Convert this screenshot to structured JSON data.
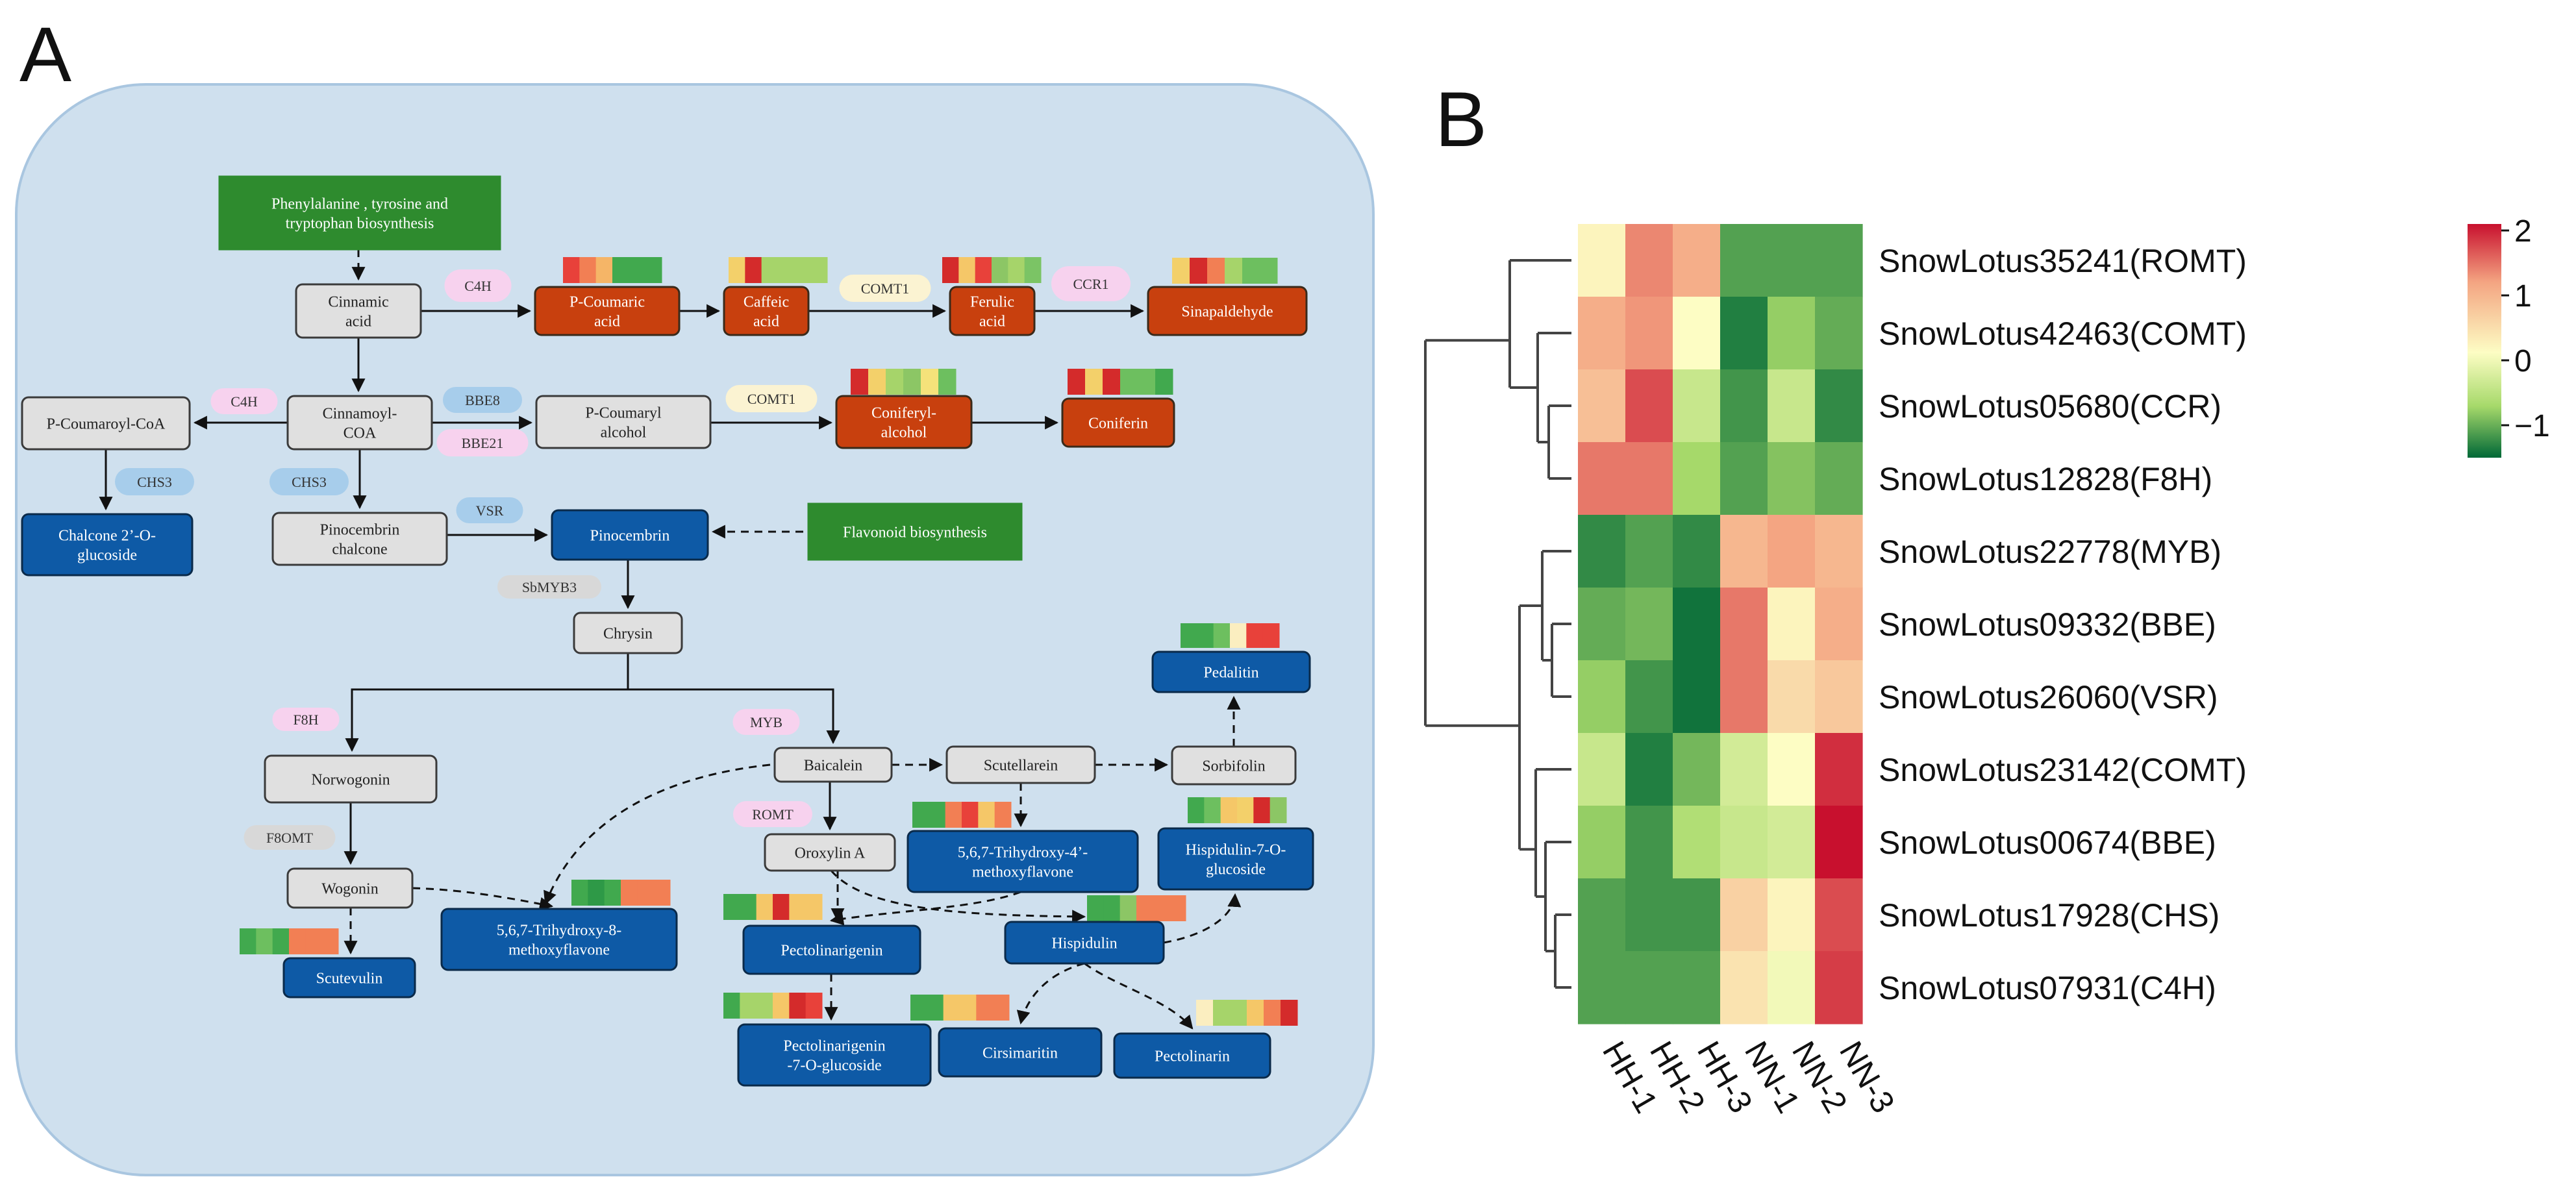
{
  "panel_a": {
    "label": "A",
    "colors": {
      "background": "#cfe0ee",
      "background_border": "#a9c6e0",
      "green_box": "#2e8b2e",
      "gray_box": "#e0e0e0",
      "orange_box": "#c8400e",
      "blue_box": "#0e5aa6",
      "pink_enzyme": "#f7d2ee",
      "blue_enzyme": "#a7cdeb",
      "yellow_enzyme": "#fbf3d2",
      "gray_enzyme": "#d8d8d8"
    },
    "nodes": [
      {
        "id": "n_phe",
        "type": "green",
        "lines": [
          "Phenylalanine , tyrosine and",
          "tryptophan biosynthesis"
        ]
      },
      {
        "id": "n_cinnamic",
        "type": "gray",
        "lines": [
          "Cinnamic",
          "acid"
        ]
      },
      {
        "id": "n_pcoumaric",
        "type": "orange",
        "lines": [
          "P-Coumaric",
          "acid"
        ]
      },
      {
        "id": "n_caffeic",
        "type": "orange",
        "lines": [
          "Caffeic",
          "acid"
        ]
      },
      {
        "id": "n_ferulic",
        "type": "orange",
        "lines": [
          "Ferulic",
          "acid"
        ]
      },
      {
        "id": "n_sinap",
        "type": "orange",
        "lines": [
          "Sinapaldehyde"
        ]
      },
      {
        "id": "n_pcoumaroylcoa",
        "type": "gray",
        "lines": [
          "P-Coumaroyl-CoA"
        ]
      },
      {
        "id": "n_cinnamoylcoa",
        "type": "gray",
        "lines": [
          "Cinnamoyl-",
          "COA"
        ]
      },
      {
        "id": "n_pcoumarylalc",
        "type": "gray",
        "lines": [
          "P-Coumaryl",
          "alcohol"
        ]
      },
      {
        "id": "n_coniferylalc",
        "type": "orange",
        "lines": [
          "Coniferyl-",
          "alcohol"
        ]
      },
      {
        "id": "n_coniferin",
        "type": "orange",
        "lines": [
          "Coniferin"
        ]
      },
      {
        "id": "n_chalcone",
        "type": "blue",
        "lines": [
          "Chalcone 2’-O-",
          "glucoside"
        ]
      },
      {
        "id": "n_pinochalcone",
        "type": "gray",
        "lines": [
          "Pinocembrin",
          "chalcone"
        ]
      },
      {
        "id": "n_pinocembrin",
        "type": "blue",
        "lines": [
          "Pinocembrin"
        ]
      },
      {
        "id": "n_flavbio",
        "type": "green",
        "lines": [
          "Flavonoid biosynthesis"
        ]
      },
      {
        "id": "n_chrysin",
        "type": "gray",
        "lines": [
          "Chrysin"
        ]
      },
      {
        "id": "n_pedalitin",
        "type": "blue",
        "lines": [
          "Pedalitin"
        ]
      },
      {
        "id": "n_norwogonin",
        "type": "gray",
        "lines": [
          "Norwogonin"
        ]
      },
      {
        "id": "n_baicalein",
        "type": "gray",
        "lines": [
          "Baicalein"
        ]
      },
      {
        "id": "n_scutellarein",
        "type": "gray",
        "lines": [
          "Scutellarein"
        ]
      },
      {
        "id": "n_sorbifolin",
        "type": "gray",
        "lines": [
          "Sorbifolin"
        ]
      },
      {
        "id": "n_oroxylin",
        "type": "gray",
        "lines": [
          "Oroxylin A"
        ]
      },
      {
        "id": "n_wogonin",
        "type": "gray",
        "lines": [
          "Wogonin"
        ]
      },
      {
        "id": "n_trihydroxy4",
        "type": "blue",
        "lines": [
          "5,6,7-Trihydroxy-4’-",
          "methoxyflavone"
        ]
      },
      {
        "id": "n_hispglu",
        "type": "blue",
        "lines": [
          "Hispidulin-7-O-",
          "glucoside"
        ]
      },
      {
        "id": "n_trihydroxy8",
        "type": "blue",
        "lines": [
          "5,6,7-Trihydroxy-8-",
          "methoxyflavone"
        ]
      },
      {
        "id": "n_pectolinarigenin",
        "type": "blue",
        "lines": [
          "Pectolinarigenin"
        ]
      },
      {
        "id": "n_hispidulin",
        "type": "blue",
        "lines": [
          "Hispidulin"
        ]
      },
      {
        "id": "n_scutevulin",
        "type": "blue",
        "lines": [
          "Scutevulin"
        ]
      },
      {
        "id": "n_pectoglu",
        "type": "blue",
        "lines": [
          "Pectolinarigenin",
          "-7-O-glucoside"
        ]
      },
      {
        "id": "n_cirsimaritin",
        "type": "blue",
        "lines": [
          "Cirsimaritin"
        ]
      },
      {
        "id": "n_pectolinarin",
        "type": "blue",
        "lines": [
          "Pectolinarin"
        ]
      }
    ],
    "enzymes": [
      {
        "id": "e_c4h_top",
        "type": "pink",
        "label": "C4H"
      },
      {
        "id": "e_comt_top",
        "type": "yellow",
        "label": "COMT1"
      },
      {
        "id": "e_ccr",
        "type": "pink",
        "label": "CCR1"
      },
      {
        "id": "e_c4h_left",
        "type": "pink",
        "label": "C4H"
      },
      {
        "id": "e_bbe8",
        "type": "blue",
        "label": "BBE8"
      },
      {
        "id": "e_bbe21",
        "type": "pink",
        "label": "BBE21"
      },
      {
        "id": "e_comt_mid",
        "type": "yellow",
        "label": "COMT1"
      },
      {
        "id": "e_chs3_left",
        "type": "blue",
        "label": "CHS3"
      },
      {
        "id": "e_chs3_mid",
        "type": "blue",
        "label": "CHS3"
      },
      {
        "id": "e_vsr",
        "type": "blue",
        "label": "VSR"
      },
      {
        "id": "e_sbmyb3",
        "type": "gray",
        "label": "SbMYB3"
      },
      {
        "id": "e_f8h",
        "type": "pink",
        "label": "F8H"
      },
      {
        "id": "e_myb",
        "type": "pink",
        "label": "MYB"
      },
      {
        "id": "e_romt",
        "type": "pink",
        "label": "ROMT"
      },
      {
        "id": "e_f8omt",
        "type": "gray",
        "label": "F8OMT"
      }
    ],
    "mini_heatmaps": [
      {
        "id": "h_pcoumaric",
        "colors": [
          "#e8413a",
          "#f27f54",
          "#f5b567",
          "#41a94e",
          "#41a94e",
          "#41a94e"
        ]
      },
      {
        "id": "h_caffeic",
        "colors": [
          "#f3d06a",
          "#d42b2b",
          "#a6d46a",
          "#a6d46a",
          "#a6d46a",
          "#a6d46a"
        ]
      },
      {
        "id": "h_ferulic",
        "colors": [
          "#d42b2b",
          "#f5c768",
          "#e8413a",
          "#8cc665",
          "#a6d46a",
          "#7bc465"
        ]
      },
      {
        "id": "h_sinap",
        "colors": [
          "#f3d06a",
          "#d42b2b",
          "#f27f54",
          "#a6d46a",
          "#6dbf5f",
          "#6dbf5f"
        ]
      },
      {
        "id": "h_coniferyl",
        "colors": [
          "#d42b2b",
          "#f3d06a",
          "#a6d46a",
          "#8cc665",
          "#f5e27a",
          "#6dbf5f"
        ]
      },
      {
        "id": "h_coniferin",
        "colors": [
          "#d42b2b",
          "#f3d06a",
          "#d42b2b",
          "#6dbf5f",
          "#6dbf5f",
          "#41a94e"
        ]
      },
      {
        "id": "h_pedalitin",
        "colors": [
          "#41a94e",
          "#41a94e",
          "#6dbf5f",
          "#fbeec0",
          "#e8413a",
          "#e8413a"
        ]
      },
      {
        "id": "h_trihydroxy4",
        "colors": [
          "#41a94e",
          "#41a94e",
          "#f27f54",
          "#e8413a",
          "#f5c768",
          "#f27f54"
        ]
      },
      {
        "id": "h_hispglu",
        "colors": [
          "#41a94e",
          "#6dbf5f",
          "#f5c768",
          "#f3d06a",
          "#d42b2b",
          "#8cc665"
        ]
      },
      {
        "id": "h_trihydroxy8",
        "colors": [
          "#41a94e",
          "#2e9947",
          "#41a94e",
          "#f27f54",
          "#f27f54",
          "#f27f54"
        ]
      },
      {
        "id": "h_pectolinarigenin",
        "colors": [
          "#41a94e",
          "#41a94e",
          "#f5c768",
          "#d42b2b",
          "#f5c768",
          "#f5c768"
        ]
      },
      {
        "id": "h_hispidulin",
        "colors": [
          "#41a94e",
          "#41a94e",
          "#8cc665",
          "#f27f54",
          "#f27f54",
          "#f27f54"
        ]
      },
      {
        "id": "h_scutevulin",
        "colors": [
          "#41a94e",
          "#6dbf5f",
          "#41a94e",
          "#f27f54",
          "#f27f54",
          "#f27f54"
        ]
      },
      {
        "id": "h_pectoglu",
        "colors": [
          "#41a94e",
          "#a6d46a",
          "#a6d46a",
          "#f5c768",
          "#d42b2b",
          "#e8413a"
        ]
      },
      {
        "id": "h_cirsimaritin",
        "colors": [
          "#41a94e",
          "#41a94e",
          "#f5c768",
          "#f5c768",
          "#f27f54",
          "#f27f54"
        ]
      },
      {
        "id": "h_pectolinarin",
        "colors": [
          "#fbeec0",
          "#a6d46a",
          "#a6d46a",
          "#f5c768",
          "#f27f54",
          "#d42b2b"
        ]
      }
    ]
  },
  "panel_b": {
    "label": "B",
    "columns": [
      "HH-1",
      "HH-2",
      "HH-3",
      "NN-1",
      "NN-2",
      "NN-3"
    ],
    "genes": [
      "SnowLotus35241(ROMT)",
      "SnowLotus42463(COMT)",
      "SnowLotus05680(CCR)",
      "SnowLotus12828(F8H)",
      "SnowLotus22778(MYB)",
      "SnowLotus09332(BBE)",
      "SnowLotus26060(VSR)",
      "SnowLotus23142(COMT)",
      "SnowLotus00674(BBE)",
      "SnowLotus17928(CHS)",
      "SnowLotus07931(C4H)"
    ],
    "colorbar": {
      "ticks": [
        "2",
        "1",
        "0",
        "−1"
      ],
      "stops": [
        "#c8102e",
        "#f4a582",
        "#fdfdc4",
        "#a6d96a",
        "#006837"
      ]
    }
  },
  "chart_data": {
    "type": "heatmap",
    "title": "",
    "xlabel": "",
    "ylabel": "",
    "x": [
      "HH-1",
      "HH-2",
      "HH-3",
      "NN-1",
      "NN-2",
      "NN-3"
    ],
    "y": [
      "SnowLotus35241(ROMT)",
      "SnowLotus42463(COMT)",
      "SnowLotus05680(CCR)",
      "SnowLotus12828(F8H)",
      "SnowLotus22778(MYB)",
      "SnowLotus09332(BBE)",
      "SnowLotus26060(VSR)",
      "SnowLotus23142(COMT)",
      "SnowLotus00674(BBE)",
      "SnowLotus17928(CHS)",
      "SnowLotus07931(C4H)"
    ],
    "values": [
      [
        0.1,
        1.2,
        0.9,
        -1.3,
        -1.3,
        -1.3
      ],
      [
        0.9,
        1.1,
        0.0,
        -1.6,
        -0.9,
        -1.2
      ],
      [
        0.7,
        1.6,
        -0.5,
        -1.4,
        -0.5,
        -1.5
      ],
      [
        1.3,
        1.3,
        -0.8,
        -1.3,
        -1.0,
        -1.2
      ],
      [
        -1.5,
        -1.3,
        -1.5,
        0.8,
        1.0,
        0.8
      ],
      [
        -1.2,
        -1.1,
        -1.7,
        1.3,
        0.1,
        0.9
      ],
      [
        -0.9,
        -1.4,
        -1.7,
        1.3,
        0.4,
        0.6
      ],
      [
        -0.5,
        -1.6,
        -1.1,
        -0.4,
        0.0,
        1.8
      ],
      [
        -0.9,
        -1.4,
        -0.7,
        -0.5,
        -0.4,
        2.0
      ],
      [
        -1.3,
        -1.4,
        -1.4,
        0.5,
        0.1,
        1.6
      ],
      [
        -1.3,
        -1.3,
        -1.3,
        0.3,
        -0.1,
        1.7
      ]
    ],
    "colorbar": {
      "range": [
        -1.5,
        2
      ],
      "ticks": [
        2,
        1,
        0,
        -1
      ]
    }
  }
}
